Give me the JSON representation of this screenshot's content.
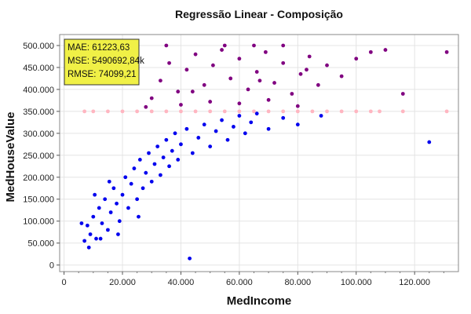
{
  "chart_data": {
    "type": "scatter",
    "title": "Regressão Linear - Composição",
    "xlabel": "MedIncome",
    "ylabel": "MedHouseValue",
    "xlim": [
      -1500,
      135000
    ],
    "ylim": [
      -15000,
      525000
    ],
    "x_ticks": [
      0,
      20000,
      40000,
      60000,
      80000,
      100000,
      120000
    ],
    "x_tick_labels": [
      "0",
      "20.000",
      "40.000",
      "60.000",
      "80.000",
      "100.000",
      "120.000"
    ],
    "y_ticks": [
      0,
      50000,
      100000,
      150000,
      200000,
      250000,
      300000,
      350000,
      400000,
      450000,
      500000
    ],
    "y_tick_labels": [
      "0",
      "50.000",
      "100.000",
      "150.000",
      "200.000",
      "250.000",
      "300.000",
      "350.000",
      "400.000",
      "450.000",
      "500.000"
    ],
    "grid": true,
    "legend": "none",
    "series_colors": {
      "below": "#0000ee",
      "above": "#800080",
      "line": "#ffb6c1"
    },
    "series": [
      {
        "role": "below",
        "points": [
          [
            7000,
            55000
          ],
          [
            8000,
            90000
          ],
          [
            9000,
            70000
          ],
          [
            10000,
            110000
          ],
          [
            11000,
            60000
          ],
          [
            12000,
            130000
          ],
          [
            13000,
            95000
          ],
          [
            14000,
            150000
          ],
          [
            15000,
            80000
          ],
          [
            16000,
            120000
          ],
          [
            17000,
            175000
          ],
          [
            18000,
            140000
          ],
          [
            19000,
            100000
          ],
          [
            20000,
            160000
          ],
          [
            21000,
            200000
          ],
          [
            22000,
            130000
          ],
          [
            23000,
            185000
          ],
          [
            24000,
            220000
          ],
          [
            25000,
            150000
          ],
          [
            26000,
            240000
          ],
          [
            27000,
            175000
          ],
          [
            28000,
            210000
          ],
          [
            29000,
            255000
          ],
          [
            30000,
            190000
          ],
          [
            31000,
            230000
          ],
          [
            32000,
            270000
          ],
          [
            33000,
            205000
          ],
          [
            34000,
            245000
          ],
          [
            35000,
            285000
          ],
          [
            36000,
            225000
          ],
          [
            37000,
            260000
          ],
          [
            38000,
            300000
          ],
          [
            39000,
            240000
          ],
          [
            40000,
            275000
          ],
          [
            42000,
            310000
          ],
          [
            44000,
            255000
          ],
          [
            46000,
            290000
          ],
          [
            48000,
            320000
          ],
          [
            50000,
            270000
          ],
          [
            52000,
            305000
          ],
          [
            54000,
            330000
          ],
          [
            56000,
            285000
          ],
          [
            58000,
            315000
          ],
          [
            60000,
            340000
          ],
          [
            62000,
            300000
          ],
          [
            64000,
            325000
          ],
          [
            66000,
            345000
          ],
          [
            70000,
            310000
          ],
          [
            75000,
            335000
          ],
          [
            80000,
            320000
          ],
          [
            88000,
            340000
          ],
          [
            6000,
            95000
          ],
          [
            8500,
            40000
          ],
          [
            12500,
            60000
          ],
          [
            18500,
            70000
          ],
          [
            25500,
            110000
          ],
          [
            15500,
            190000
          ],
          [
            10500,
            160000
          ],
          [
            43000,
            15000
          ],
          [
            125000,
            280000
          ]
        ]
      },
      {
        "role": "above",
        "points": [
          [
            30000,
            380000
          ],
          [
            33000,
            420000
          ],
          [
            36000,
            460000
          ],
          [
            39000,
            395000
          ],
          [
            42000,
            445000
          ],
          [
            45000,
            480000
          ],
          [
            48000,
            410000
          ],
          [
            51000,
            455000
          ],
          [
            54000,
            490000
          ],
          [
            57000,
            425000
          ],
          [
            60000,
            470000
          ],
          [
            63000,
            400000
          ],
          [
            66000,
            440000
          ],
          [
            69000,
            485000
          ],
          [
            72000,
            415000
          ],
          [
            75000,
            460000
          ],
          [
            78000,
            390000
          ],
          [
            81000,
            435000
          ],
          [
            84000,
            475000
          ],
          [
            87000,
            410000
          ],
          [
            40000,
            365000
          ],
          [
            50000,
            372000
          ],
          [
            60000,
            368000
          ],
          [
            70000,
            376000
          ],
          [
            80000,
            362000
          ],
          [
            35000,
            500000
          ],
          [
            55000,
            500000
          ],
          [
            65000,
            500000
          ],
          [
            75000,
            500000
          ],
          [
            90000,
            455000
          ],
          [
            95000,
            430000
          ],
          [
            100000,
            470000
          ],
          [
            105000,
            485000
          ],
          [
            110000,
            490000
          ],
          [
            116000,
            390000
          ],
          [
            131000,
            485000
          ],
          [
            28000,
            360000
          ],
          [
            44000,
            395000
          ],
          [
            67000,
            420000
          ],
          [
            83000,
            445000
          ]
        ]
      },
      {
        "role": "line",
        "points": [
          [
            7000,
            350000
          ],
          [
            10000,
            350000
          ],
          [
            15000,
            350000
          ],
          [
            20000,
            350000
          ],
          [
            25000,
            350000
          ],
          [
            30000,
            350000
          ],
          [
            35000,
            350000
          ],
          [
            40000,
            350000
          ],
          [
            45000,
            350000
          ],
          [
            50000,
            350000
          ],
          [
            55000,
            350000
          ],
          [
            60000,
            350000
          ],
          [
            65000,
            350000
          ],
          [
            70000,
            350000
          ],
          [
            75000,
            350000
          ],
          [
            80000,
            350000
          ],
          [
            85000,
            350000
          ],
          [
            90000,
            350000
          ],
          [
            95000,
            350000
          ],
          [
            100000,
            350000
          ],
          [
            105000,
            350000
          ],
          [
            108000,
            350000
          ],
          [
            116000,
            350000
          ],
          [
            131000,
            350000
          ]
        ]
      }
    ],
    "metrics": {
      "mae": "MAE: 61223,63",
      "mse": "MSE: 5490692,84k",
      "rmse": "RMSE: 74099,21"
    }
  }
}
